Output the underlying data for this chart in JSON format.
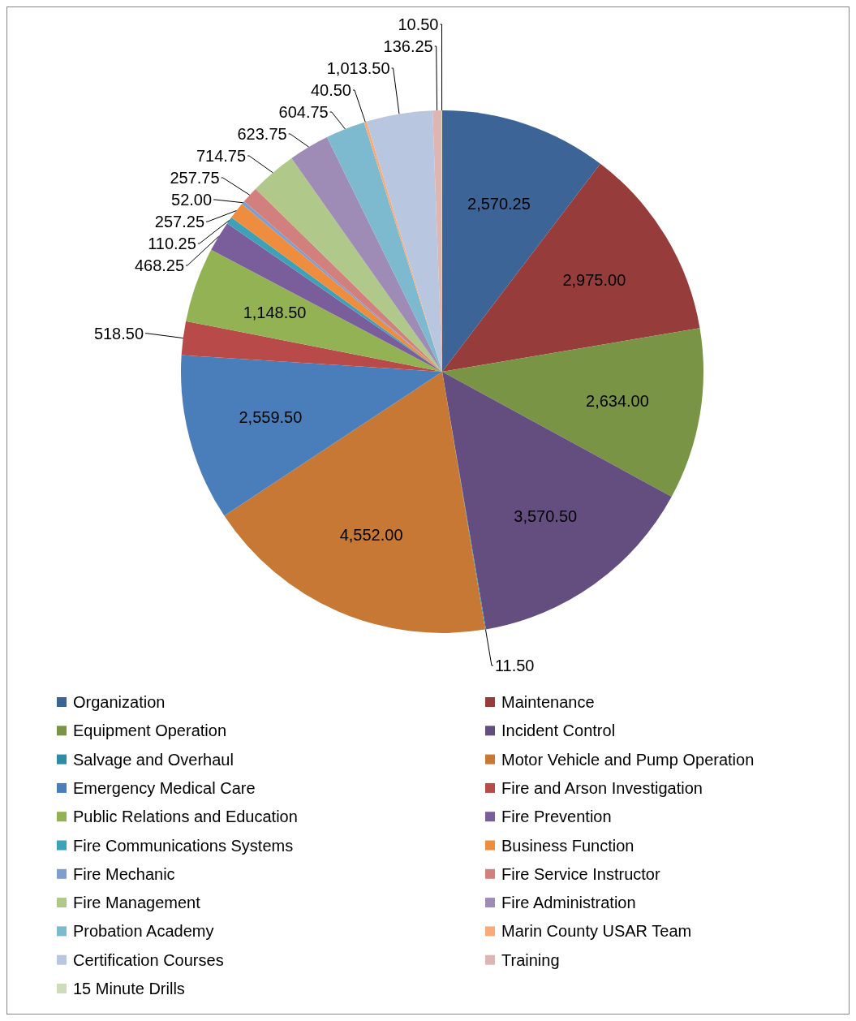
{
  "chart_data": {
    "type": "pie",
    "legend": "bottom",
    "categories": [
      "Organization",
      "Maintenance",
      "Equipment Operation",
      "Incident Control",
      "Salvage and Overhaul",
      "Motor Vehicle and Pump Operation",
      "Emergency Medical Care",
      "Fire and Arson Investigation",
      "Public Relations and Education",
      "Fire Prevention",
      "Fire Communications Systems",
      "Business Function",
      "Fire Mechanic",
      "Fire Service Instructor",
      "Fire Management",
      "Fire Administration",
      "Probation Academy",
      "Marin County USAR Team",
      "Certification Courses",
      "Training",
      "15 Minute Drills"
    ],
    "values": [
      2570.25,
      2975.0,
      2634.0,
      3570.5,
      11.5,
      4552.0,
      2559.5,
      518.5,
      1148.5,
      468.25,
      110.25,
      257.25,
      52.0,
      257.75,
      714.75,
      623.75,
      604.75,
      40.5,
      1013.5,
      136.25,
      10.5
    ],
    "value_labels": [
      "2,570.25",
      "2,975.00",
      "2,634.00",
      "3,570.50",
      "11.50",
      "4,552.00",
      "2,559.50",
      "518.50",
      "1,148.50",
      "468.25",
      "110.25",
      "257.25",
      "52.00",
      "257.75",
      "714.75",
      "623.75",
      "604.75",
      "40.50",
      "1,013.50",
      "136.25",
      "10.50"
    ],
    "colors": [
      "#3c6496",
      "#963c3a",
      "#7a9445",
      "#644e80",
      "#2f8aa3",
      "#c77834",
      "#4a7ebb",
      "#b84b49",
      "#93b254",
      "#7a5e9b",
      "#3ea1b8",
      "#ee8d3d",
      "#7e9ed0",
      "#d1807e",
      "#b0c88a",
      "#9e8bb6",
      "#7db9cf",
      "#f8ab78",
      "#b9c6df",
      "#dfb5b4",
      "#cfdcbb"
    ]
  }
}
